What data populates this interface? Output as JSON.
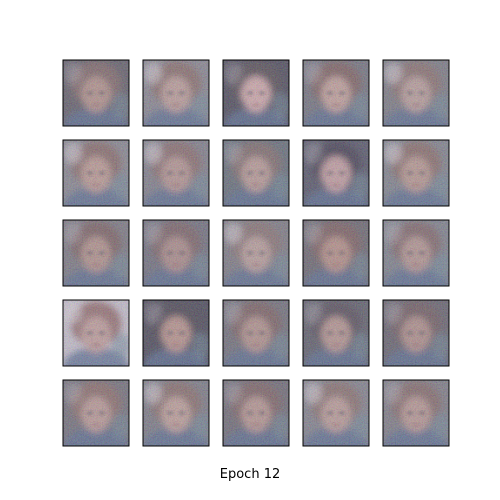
{
  "figure": {
    "caption": "Epoch 12",
    "grid": {
      "rows": 5,
      "cols": 5
    },
    "background": "#ffffff",
    "frame_color": "#000000",
    "palette": {
      "skin": "#b58a6e",
      "hair": "#6a4a38",
      "shadow": "#2c2a2e",
      "cool": "#5d7f86",
      "blue": "#3f5a7a",
      "light": "#e8e0d8"
    },
    "tiles": [
      {
        "name": "sample-1",
        "bg": "#4a4846",
        "hair": "#705446",
        "face": "#b18a72",
        "tone": "warm"
      },
      {
        "name": "sample-2",
        "bg": "#7a7a78",
        "hair": "#7b5d4b",
        "face": "#bd9984",
        "tone": "light"
      },
      {
        "name": "sample-3",
        "bg": "#2f2f33",
        "hair": "#3c342f",
        "face": "#d6a79a",
        "tone": "dark"
      },
      {
        "name": "sample-4",
        "bg": "#5f6261",
        "hair": "#6e4d3e",
        "face": "#c59d86",
        "tone": "warm"
      },
      {
        "name": "sample-5",
        "bg": "#6a6c68",
        "hair": "#7c6150",
        "face": "#b99a86",
        "tone": "light"
      },
      {
        "name": "sample-6",
        "bg": "#7a7b78",
        "hair": "#7a5a49",
        "face": "#bd957d",
        "tone": "light"
      },
      {
        "name": "sample-7",
        "bg": "#707170",
        "hair": "#7b5c4e",
        "face": "#b48e7a",
        "tone": "light"
      },
      {
        "name": "sample-8",
        "bg": "#4e5b5a",
        "hair": "#6f5a4b",
        "face": "#b99580",
        "tone": "cool"
      },
      {
        "name": "sample-9",
        "bg": "#3a3d45",
        "hair": "#26242a",
        "face": "#c69a8e",
        "tone": "dark"
      },
      {
        "name": "sample-10",
        "bg": "#707673",
        "hair": "#7c5b49",
        "face": "#b89279",
        "tone": "light"
      },
      {
        "name": "sample-11",
        "bg": "#6a6a66",
        "hair": "#6a4d40",
        "face": "#b08a72",
        "tone": "warm"
      },
      {
        "name": "sample-12",
        "bg": "#5c5e60",
        "hair": "#6a5044",
        "face": "#a8826f",
        "tone": "warm"
      },
      {
        "name": "sample-13",
        "bg": "#6c6c68",
        "hair": "#7a6354",
        "face": "#b99a86",
        "tone": "light"
      },
      {
        "name": "sample-14",
        "bg": "#55534f",
        "hair": "#6c4c3d",
        "face": "#b5876d",
        "tone": "warm"
      },
      {
        "name": "sample-15",
        "bg": "#6d7472",
        "hair": "#71554a",
        "face": "#b28e79",
        "tone": "cool"
      },
      {
        "name": "sample-16",
        "bg": "#c9c4c4",
        "hair": "#8c6152",
        "face": "#c39a87",
        "tone": "light"
      },
      {
        "name": "sample-17",
        "bg": "#2c2c30",
        "hair": "#2f2a2b",
        "face": "#b88b73",
        "tone": "dark"
      },
      {
        "name": "sample-18",
        "bg": "#5c5e5c",
        "hair": "#6a4e40",
        "face": "#b08a73",
        "tone": "warm"
      },
      {
        "name": "sample-19",
        "bg": "#454848",
        "hair": "#3e3636",
        "face": "#b58e78",
        "tone": "dark"
      },
      {
        "name": "sample-20",
        "bg": "#4f4d4c",
        "hair": "#5d463d",
        "face": "#ad8671",
        "tone": "warm"
      },
      {
        "name": "sample-21",
        "bg": "#5f5e5c",
        "hair": "#7e5c49",
        "face": "#bb9480",
        "tone": "warm"
      },
      {
        "name": "sample-22",
        "bg": "#6a6c6a",
        "hair": "#7a5d4c",
        "face": "#c09b84",
        "tone": "light"
      },
      {
        "name": "sample-23",
        "bg": "#5a5856",
        "hair": "#6d5042",
        "face": "#b68f79",
        "tone": "warm"
      },
      {
        "name": "sample-24",
        "bg": "#737573",
        "hair": "#7c604f",
        "face": "#bb9782",
        "tone": "light"
      },
      {
        "name": "sample-25",
        "bg": "#6e6e6b",
        "hair": "#76594a",
        "face": "#b7917c",
        "tone": "warm"
      }
    ]
  }
}
